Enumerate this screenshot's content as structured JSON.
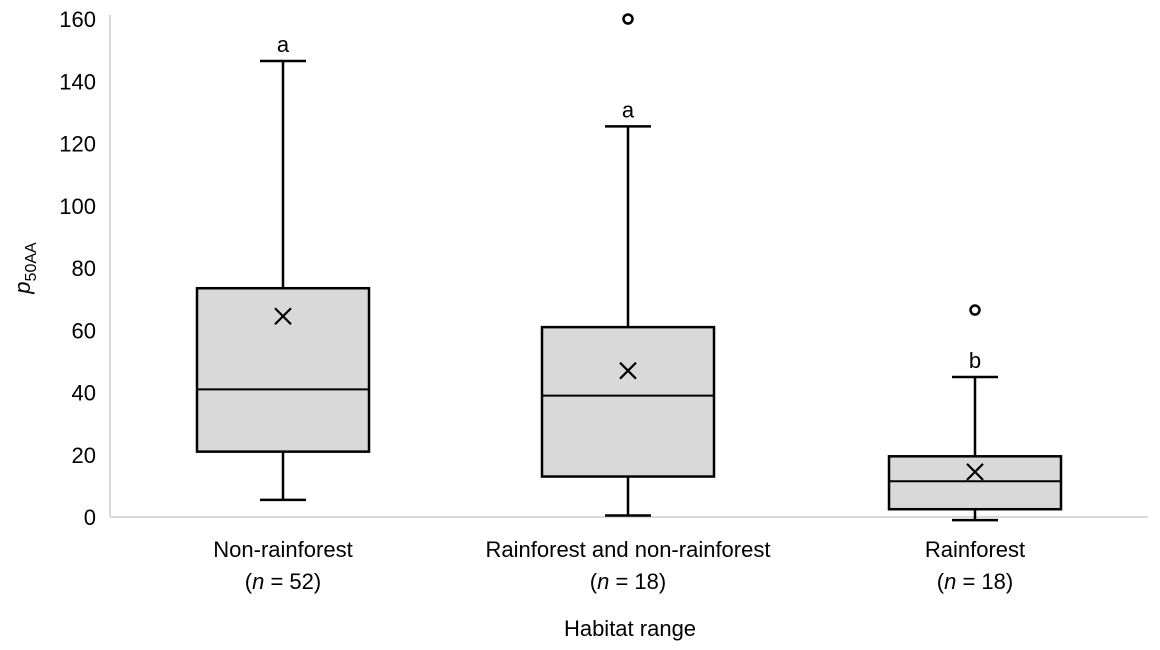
{
  "chart_data": {
    "type": "box",
    "ylabel": {
      "base": "p",
      "subscript": "50AA"
    },
    "xlabel": "Habitat range",
    "ylim": [
      0,
      160
    ],
    "yticks": [
      0,
      20,
      40,
      60,
      80,
      100,
      120,
      140,
      160
    ],
    "grid": false,
    "colors": {
      "box_fill": "#d9d9d9",
      "stroke": "#000000",
      "axis": "#d9d9d9"
    },
    "categories": [
      {
        "name": "Non-rainforest",
        "n_label": {
          "open": "(",
          "n": "n",
          "rest": " = 52)"
        },
        "whisker_low": 5.5,
        "q1": 21,
        "median": 41,
        "q3": 73.5,
        "whisker_high": 146.5,
        "mean": 64.5,
        "outliers": [],
        "letter": "a"
      },
      {
        "name": "Rainforest and non-rainforest",
        "n_label": {
          "open": "(",
          "n": "n",
          "rest": " = 18)"
        },
        "whisker_low": 0.5,
        "q1": 13,
        "median": 39,
        "q3": 61,
        "whisker_high": 125.5,
        "mean": 47,
        "outliers": [
          160
        ],
        "letter": "a"
      },
      {
        "name": "Rainforest",
        "n_label": {
          "open": "(",
          "n": "n",
          "rest": " = 18)"
        },
        "whisker_low": -1,
        "q1": 2.5,
        "median": 11.5,
        "q3": 19.5,
        "whisker_high": 45,
        "mean": 14.5,
        "outliers": [
          66.5
        ],
        "letter": "b"
      }
    ]
  }
}
